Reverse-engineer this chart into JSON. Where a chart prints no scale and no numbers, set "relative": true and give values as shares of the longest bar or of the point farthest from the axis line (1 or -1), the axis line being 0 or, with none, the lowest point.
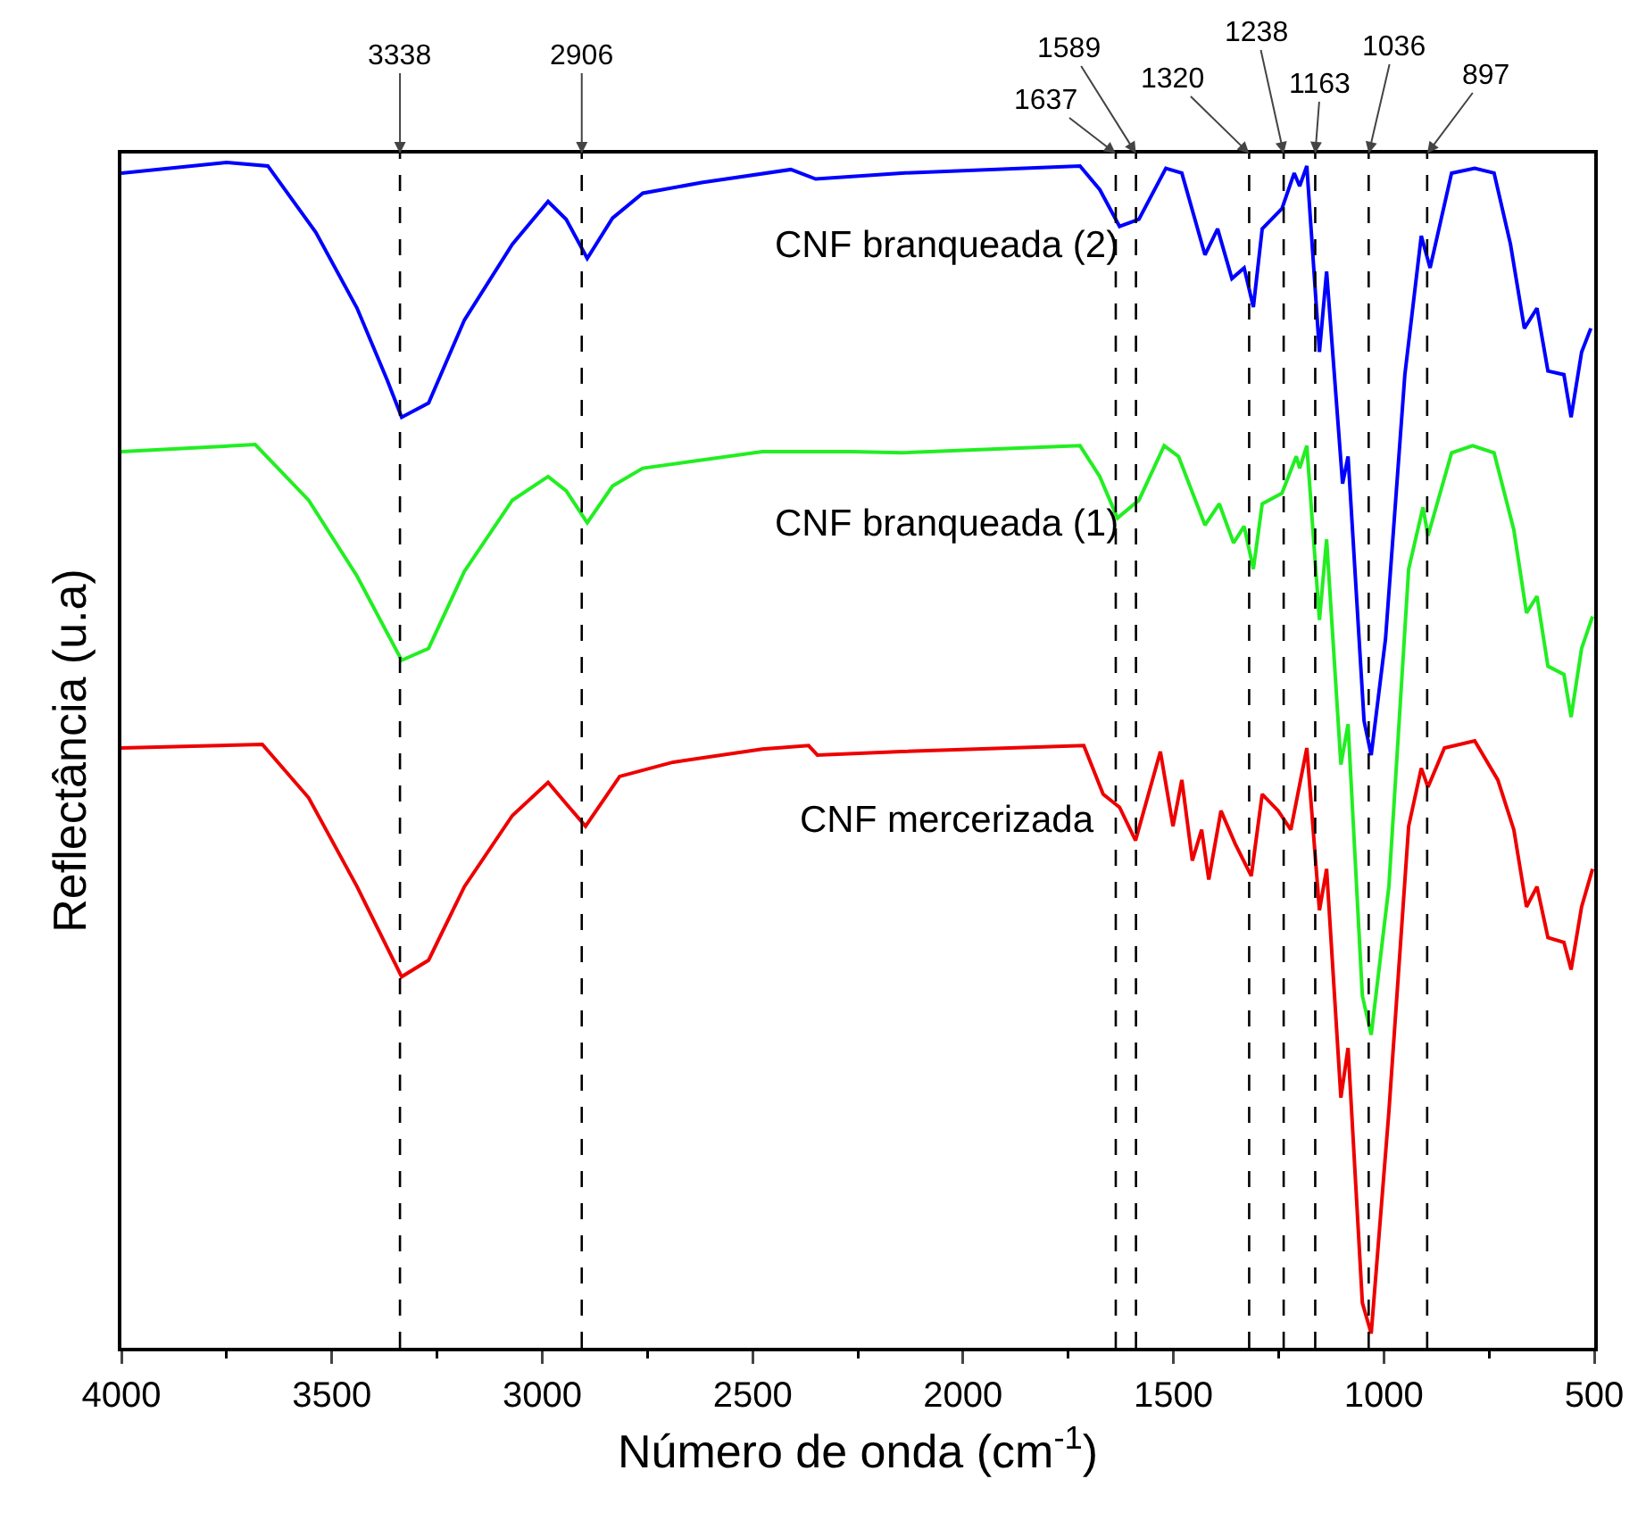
{
  "chart_data": {
    "type": "line",
    "relative": true,
    "xlabel": "Número de onda (cm$^{-1}$)",
    "ylabel": "Reflectância (u.a)",
    "xlim": [
      4000,
      500
    ],
    "xticks": [
      4000,
      3500,
      3000,
      2500,
      2000,
      1500,
      1000,
      500
    ],
    "grid": false,
    "legend": false,
    "tick_labels": "x",
    "series": [
      {
        "name": "CNF branqueada (2)",
        "color": "#0000ff",
        "x": [
          4000,
          3750,
          3652,
          3538,
          3440,
          3368,
          3334,
          3270,
          3185,
          3071,
          2986,
          2943,
          2893,
          2833,
          2761,
          2621,
          2409,
          2350,
          2146,
          1722,
          1675,
          1628,
          1582,
          1518,
          1480,
          1425,
          1395,
          1361,
          1332,
          1310,
          1289,
          1242,
          1213,
          1200,
          1183,
          1153,
          1136,
          1098,
          1085,
          1047,
          1030,
          996,
          950,
          911,
          890,
          839,
          784,
          738,
          699,
          666,
          636,
          610,
          572,
          555,
          530,
          508
        ],
        "values": [
          0.991,
          1.0,
          0.997,
          0.941,
          0.877,
          0.816,
          0.785,
          0.797,
          0.867,
          0.931,
          0.967,
          0.952,
          0.919,
          0.953,
          0.974,
          0.983,
          0.994,
          0.986,
          0.991,
          0.997,
          0.977,
          0.946,
          0.952,
          0.995,
          0.991,
          0.922,
          0.944,
          0.902,
          0.911,
          0.878,
          0.944,
          0.961,
          0.991,
          0.98,
          0.997,
          0.84,
          0.908,
          0.729,
          0.752,
          0.529,
          0.5,
          0.598,
          0.821,
          0.938,
          0.911,
          0.991,
          0.995,
          0.991,
          0.931,
          0.86,
          0.877,
          0.824,
          0.821,
          0.785,
          0.84,
          0.86
        ]
      },
      {
        "name": "CNF branqueada (1)",
        "color": "#22ee22",
        "x": [
          4000,
          3682,
          3555,
          3440,
          3334,
          3270,
          3185,
          3071,
          2986,
          2943,
          2893,
          2833,
          2761,
          2477,
          2265,
          2146,
          1722,
          1675,
          1633,
          1582,
          1522,
          1488,
          1425,
          1391,
          1357,
          1332,
          1310,
          1289,
          1242,
          1208,
          1200,
          1183,
          1153,
          1136,
          1102,
          1085,
          1051,
          1030,
          988,
          941,
          907,
          895,
          839,
          789,
          738,
          691,
          661,
          636,
          610,
          572,
          555,
          530,
          504
        ],
        "values": [
          0.756,
          0.762,
          0.715,
          0.651,
          0.58,
          0.59,
          0.655,
          0.715,
          0.735,
          0.723,
          0.696,
          0.727,
          0.742,
          0.756,
          0.756,
          0.755,
          0.761,
          0.735,
          0.7,
          0.715,
          0.761,
          0.752,
          0.694,
          0.712,
          0.679,
          0.693,
          0.657,
          0.712,
          0.721,
          0.752,
          0.742,
          0.761,
          0.614,
          0.682,
          0.492,
          0.526,
          0.297,
          0.264,
          0.389,
          0.657,
          0.709,
          0.685,
          0.755,
          0.761,
          0.755,
          0.69,
          0.62,
          0.634,
          0.575,
          0.568,
          0.532,
          0.59,
          0.617
        ]
      },
      {
        "name": "CNF mercerizada",
        "color": "#ee0000",
        "x": [
          4000,
          3665,
          3555,
          3440,
          3334,
          3270,
          3185,
          3071,
          2986,
          2943,
          2897,
          2816,
          2689,
          2477,
          2367,
          2346,
          2146,
          1713,
          1667,
          1628,
          1590,
          1531,
          1501,
          1480,
          1455,
          1433,
          1416,
          1387,
          1353,
          1315,
          1289,
          1251,
          1221,
          1183,
          1153,
          1136,
          1102,
          1085,
          1051,
          1030,
          988,
          941,
          911,
          895,
          856,
          784,
          729,
          691,
          661,
          636,
          610,
          572,
          555,
          530,
          504
        ],
        "values": [
          0.506,
          0.509,
          0.464,
          0.389,
          0.313,
          0.327,
          0.389,
          0.449,
          0.477,
          0.459,
          0.44,
          0.482,
          0.494,
          0.505,
          0.508,
          0.5,
          0.503,
          0.508,
          0.467,
          0.456,
          0.428,
          0.503,
          0.44,
          0.479,
          0.411,
          0.437,
          0.395,
          0.453,
          0.425,
          0.398,
          0.467,
          0.453,
          0.437,
          0.506,
          0.369,
          0.404,
          0.211,
          0.253,
          0.038,
          0.012,
          0.199,
          0.44,
          0.489,
          0.473,
          0.506,
          0.512,
          0.479,
          0.437,
          0.372,
          0.389,
          0.346,
          0.342,
          0.319,
          0.372,
          0.404
        ]
      }
    ],
    "ref_lines": [
      {
        "axis": "x",
        "value": 3338,
        "label": "3338",
        "line_style": "dashed",
        "color": "#000000"
      },
      {
        "axis": "x",
        "value": 2906,
        "label": "2906",
        "line_style": "dashed",
        "color": "#000000"
      },
      {
        "axis": "x",
        "value": 1637,
        "label": "1637",
        "line_style": "dashed",
        "color": "#000000"
      },
      {
        "axis": "x",
        "value": 1589,
        "label": "1589",
        "line_style": "dashed",
        "color": "#000000"
      },
      {
        "axis": "x",
        "value": 1320,
        "label": "1320",
        "line_style": "dashed",
        "color": "#000000"
      },
      {
        "axis": "x",
        "value": 1238,
        "label": "1238",
        "line_style": "dashed",
        "color": "#000000"
      },
      {
        "axis": "x",
        "value": 1163,
        "label": "1163",
        "line_style": "dashed",
        "color": "#000000"
      },
      {
        "axis": "x",
        "value": 1036,
        "label": "1036",
        "line_style": "dashed",
        "color": "#000000"
      },
      {
        "axis": "x",
        "value": 897,
        "label": "897",
        "line_style": "dashed",
        "color": "#000000"
      }
    ]
  }
}
